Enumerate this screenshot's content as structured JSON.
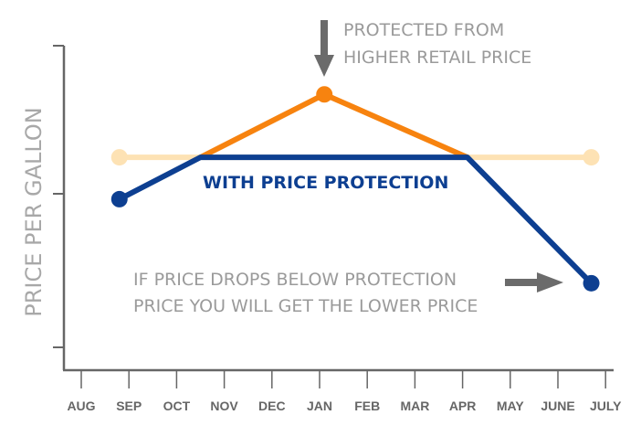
{
  "chart_data": {
    "type": "line",
    "title": "",
    "xlabel": "",
    "ylabel": "PRICE PER GALLON",
    "categories": [
      "AUG",
      "SEP",
      "OCT",
      "NOV",
      "DEC",
      "JAN",
      "FEB",
      "MAR",
      "APR",
      "MAY",
      "JUNE",
      "JULY"
    ],
    "xlim": [
      0,
      11
    ],
    "ylim": [
      0,
      100
    ],
    "grid": false,
    "series": [
      {
        "id": "protection",
        "color": "#fde2b4",
        "x": [
          0.8,
          10.7
        ],
        "y": [
          65.6,
          65.6
        ],
        "markers": [
          0,
          1
        ]
      },
      {
        "id": "retail",
        "color": "#f7830f",
        "x": [
          2.5,
          5.1,
          8.1
        ],
        "y": [
          65.6,
          85,
          65.6
        ],
        "markers": [
          1
        ]
      },
      {
        "id": "with-protection",
        "name": "WITH PRICE PROTECTION",
        "color": "#0d3f91",
        "x": [
          0.8,
          2.5,
          8.1,
          10.7
        ],
        "y": [
          52.7,
          65.6,
          65.6,
          26.8
        ],
        "markers": [
          0,
          3
        ]
      }
    ],
    "annotations": [
      {
        "lines": [
          "PROTECTED FROM",
          "HIGHER RETAIL PRICE"
        ],
        "arrow": "down"
      },
      {
        "lines": [
          "IF PRICE DROPS BELOW PROTECTION",
          "PRICE YOU WILL GET THE LOWER PRICE"
        ],
        "arrow": "right"
      }
    ],
    "axis_color": "#666666"
  }
}
